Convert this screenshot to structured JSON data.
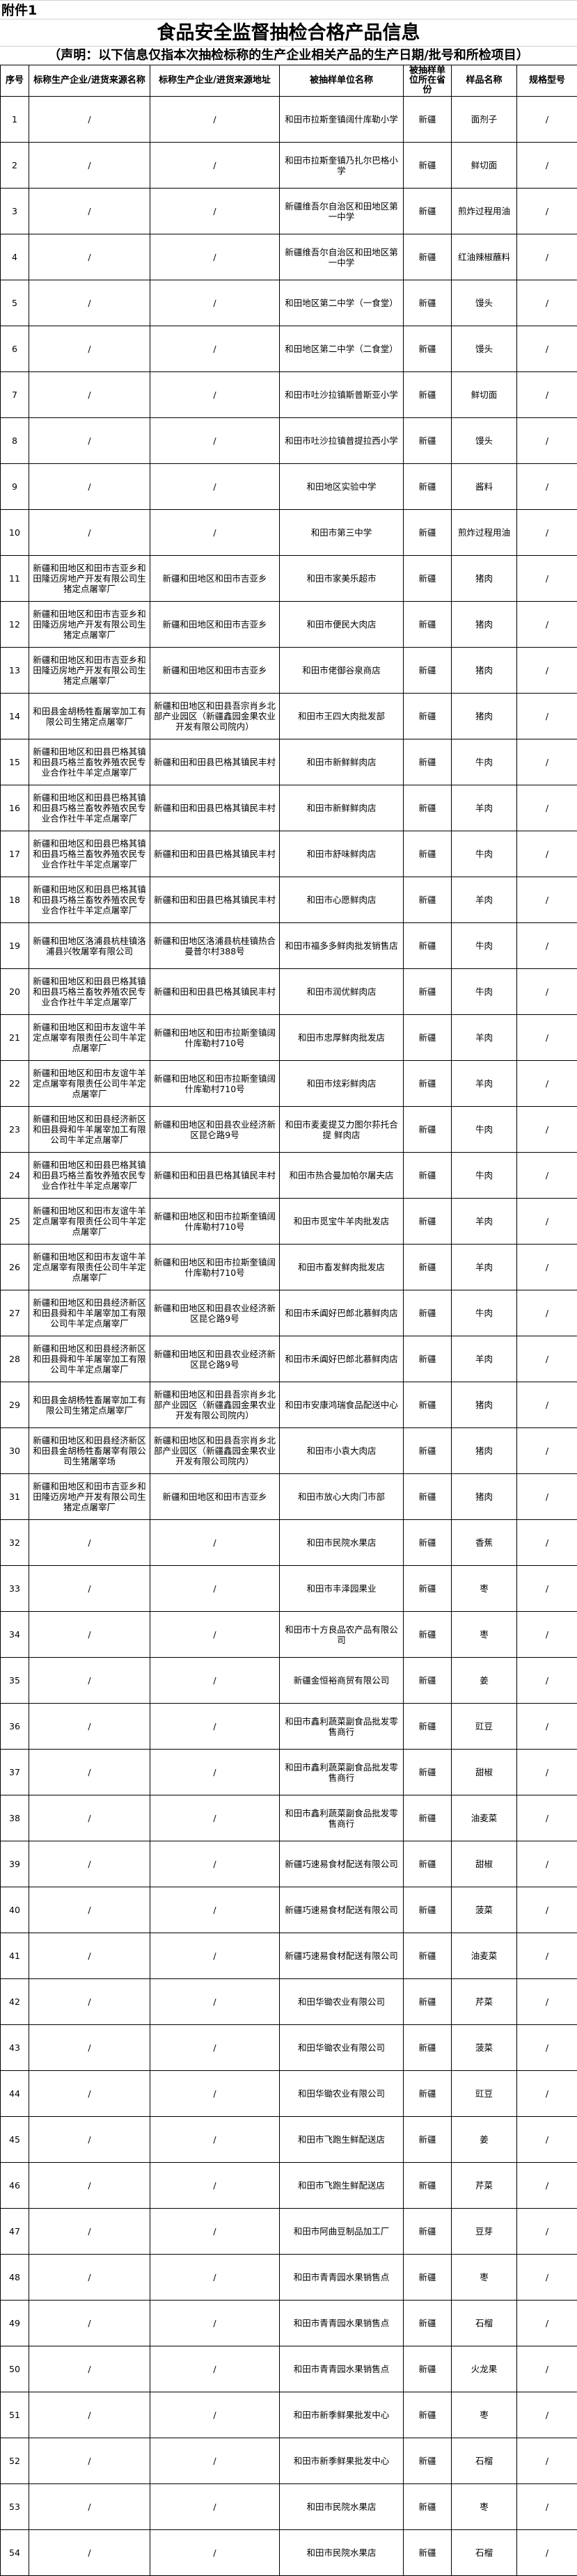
{
  "header": {
    "attachment": "附件1",
    "title": "食品安全监督抽检合格产品信息",
    "subtitle": "（声明：以下信息仅指本次抽检标称的生产企业相关产品的生产日期/批号和所检项目）"
  },
  "table": {
    "columns": [
      "序号",
      "标称生产企业/进货来源名称",
      "标称生产企业/进货来源地址",
      "被抽样单位名称",
      "被抽样单位所在省份",
      "样品名称",
      "规格型号"
    ],
    "rows": [
      [
        "1",
        "/",
        "/",
        "和田市拉斯奎镇阔什库勒小学",
        "新疆",
        "面剂子",
        "/"
      ],
      [
        "2",
        "/",
        "/",
        "和田市拉斯奎镇乃扎尔巴格小学",
        "新疆",
        "鲜切面",
        "/"
      ],
      [
        "3",
        "/",
        "/",
        "新疆维吾尔自治区和田地区第一中学",
        "新疆",
        "煎炸过程用油",
        "/"
      ],
      [
        "4",
        "/",
        "/",
        "新疆维吾尔自治区和田地区第一中学",
        "新疆",
        "红油辣椒蘸料",
        "/"
      ],
      [
        "5",
        "/",
        "/",
        "和田地区第二中学（一食堂）",
        "新疆",
        "馒头",
        "/"
      ],
      [
        "6",
        "/",
        "/",
        "和田地区第二中学（二食堂）",
        "新疆",
        "馒头",
        "/"
      ],
      [
        "7",
        "/",
        "/",
        "和田市吐沙拉镇斯普斯亚小学",
        "新疆",
        "鲜切面",
        "/"
      ],
      [
        "8",
        "/",
        "/",
        "和田市吐沙拉镇普提拉西小学",
        "新疆",
        "馒头",
        "/"
      ],
      [
        "9",
        "/",
        "/",
        "和田地区实验中学",
        "新疆",
        "酱料",
        "/"
      ],
      [
        "10",
        "/",
        "/",
        "和田市第三中学",
        "新疆",
        "煎炸过程用油",
        "/"
      ],
      [
        "11",
        "新疆和田地区和田市吉亚乡和田隆迈房地产开发有限公司生猪定点屠宰厂",
        "新疆和田地区和田市吉亚乡",
        "和田市家美乐超市",
        "新疆",
        "猪肉",
        "/"
      ],
      [
        "12",
        "新疆和田地区和田市吉亚乡和田隆迈房地产开发有限公司生猪定点屠宰厂",
        "新疆和田地区和田市吉亚乡",
        "和田市便民大肉店",
        "新疆",
        "猪肉",
        "/"
      ],
      [
        "13",
        "新疆和田地区和田市吉亚乡和田隆迈房地产开发有限公司生猪定点屠宰厂",
        "新疆和田地区和田市吉亚乡",
        "和田市佬御谷泉商店",
        "新疆",
        "猪肉",
        "/"
      ],
      [
        "14",
        "和田县金胡杨牲畜屠宰加工有限公司生猪定点屠宰厂",
        "新疆和田地区和田县吾宗肖乡北部产业园区（新疆鑫园金果农业开发有限公司院内）",
        "和田市王四大肉批发部",
        "新疆",
        "猪肉",
        "/"
      ],
      [
        "15",
        "新疆和田地区和田县巴格其镇和田县巧格兰畜牧养殖农民专业合作社牛羊定点屠宰厂",
        "新疆和田和田县巴格其镇民丰村",
        "和田市新鲜鲜肉店",
        "新疆",
        "牛肉",
        "/"
      ],
      [
        "16",
        "新疆和田地区和田县巴格其镇和田县巧格兰畜牧养殖农民专业合作社牛羊定点屠宰厂",
        "新疆和田和田县巴格其镇民丰村",
        "和田市新鲜鲜肉店",
        "新疆",
        "羊肉",
        "/"
      ],
      [
        "17",
        "新疆和田地区和田县巴格其镇和田县巧格兰畜牧养殖农民专业合作社牛羊定点屠宰厂",
        "新疆和田和田县巴格其镇民丰村",
        "和田市舒味鲜肉店",
        "新疆",
        "牛肉",
        "/"
      ],
      [
        "18",
        "新疆和田地区和田县巴格其镇和田县巧格兰畜牧养殖农民专业合作社牛羊定点屠宰厂",
        "新疆和田和田县巴格其镇民丰村",
        "和田市心愿鲜肉店",
        "新疆",
        "羊肉",
        "/"
      ],
      [
        "19",
        "新疆和田地区洛浦县杭桂镇洛浦县兴牧屠宰有限公司",
        "新疆和田地区洛浦县杭桂镇热合曼普尔村388号",
        "和田市福多多鲜肉批发销售店",
        "新疆",
        "牛肉",
        "/"
      ],
      [
        "20",
        "新疆和田地区和田县巴格其镇和田县巧格兰畜牧养殖农民专业合作社牛羊定点屠宰厂",
        "新疆和田和田县巴格其镇民丰村",
        "和田市润优鲜肉店",
        "新疆",
        "牛肉",
        "/"
      ],
      [
        "21",
        "新疆和田地区和田市友谊牛羊定点屠宰有限责任公司牛羊定点屠宰厂",
        "新疆和田地区和田市拉斯奎镇阔什库勒村710号",
        "和田市忠厚鲜肉批发店",
        "新疆",
        "羊肉",
        "/"
      ],
      [
        "22",
        "新疆和田地区和田市友谊牛羊定点屠宰有限责任公司牛羊定点屠宰厂",
        "新疆和田地区和田市拉斯奎镇阔什库勒村710号",
        "和田市炫彩鲜肉店",
        "新疆",
        "羊肉",
        "/"
      ],
      [
        "23",
        "新疆和田地区和田县经济新区和田县舜和牛羊屠宰加工有限公司牛羊定点屠宰厂",
        "新疆和田地区和田县农业经济新区昆仑路9号",
        "和田市麦麦提艾力图尔荪托合提 鲜肉店",
        "新疆",
        "牛肉",
        "/"
      ],
      [
        "24",
        "新疆和田地区和田县巴格其镇和田县巧格兰畜牧养殖农民专业合作社牛羊定点屠宰厂",
        "新疆和田和田县巴格其镇民丰村",
        "和田市热合曼加帕尔屠夫店",
        "新疆",
        "牛肉",
        "/"
      ],
      [
        "25",
        "新疆和田地区和田市友谊牛羊定点屠宰有限责任公司牛羊定点屠宰厂",
        "新疆和田地区和田市拉斯奎镇阔什库勒村710号",
        "和田市觅宝牛羊肉批发店",
        "新疆",
        "羊肉",
        "/"
      ],
      [
        "26",
        "新疆和田地区和田市友谊牛羊定点屠宰有限责任公司牛羊定点屠宰厂",
        "新疆和田地区和田市拉斯奎镇阔什库勒村710号",
        "和田市畜发鲜肉批发店",
        "新疆",
        "羊肉",
        "/"
      ],
      [
        "27",
        "新疆和田地区和田县经济新区和田县舜和牛羊屠宰加工有限公司牛羊定点屠宰厂",
        "新疆和田地区和田县农业经济新区昆仑路9号",
        "和田市禾阗好巴郎北慕鲜肉店",
        "新疆",
        "牛肉",
        "/"
      ],
      [
        "28",
        "新疆和田地区和田县经济新区和田县舜和牛羊屠宰加工有限公司牛羊定点屠宰厂",
        "新疆和田地区和田县农业经济新区昆仑路9号",
        "和田市禾阗好巴郎北慕鲜肉店",
        "新疆",
        "羊肉",
        "/"
      ],
      [
        "29",
        "和田县金胡杨牲畜屠宰加工有限公司生猪定点屠宰厂",
        "新疆和田地区和田县吾宗肖乡北部产业园区（新疆鑫园金果农业开发有限公司院内）",
        "和田市安康鸿瑞食品配送中心",
        "新疆",
        "猪肉",
        "/"
      ],
      [
        "30",
        "新疆和田地区和田县经济新区和田县金胡杨牲畜屠宰有限公司生猪屠宰场",
        "新疆和田地区和田县吾宗肖乡北部产业园区（新疆鑫园金果农业开发有限公司院内）",
        "和田市小袁大肉店",
        "新疆",
        "猪肉",
        "/"
      ],
      [
        "31",
        "新疆和田地区和田市吉亚乡和田隆迈房地产开发有限公司生猪定点屠宰厂",
        "新疆和田地区和田市吉亚乡",
        "和田市放心大肉门市部",
        "新疆",
        "猪肉",
        "/"
      ],
      [
        "32",
        "/",
        "/",
        "和田市民院水果店",
        "新疆",
        "香蕉",
        "/"
      ],
      [
        "33",
        "/",
        "/",
        "和田市丰泽园果业",
        "新疆",
        "枣",
        "/"
      ],
      [
        "34",
        "/",
        "/",
        "和田市十方良品农产品有限公司",
        "新疆",
        "枣",
        "/"
      ],
      [
        "35",
        "/",
        "/",
        "新疆金恒裕商贸有限公司",
        "新疆",
        "姜",
        "/"
      ],
      [
        "36",
        "/",
        "/",
        "和田市鑫利蔬菜副食品批发零售商行",
        "新疆",
        "豇豆",
        "/"
      ],
      [
        "37",
        "/",
        "/",
        "和田市鑫利蔬菜副食品批发零售商行",
        "新疆",
        "甜椒",
        "/"
      ],
      [
        "38",
        "/",
        "/",
        "和田市鑫利蔬菜副食品批发零售商行",
        "新疆",
        "油麦菜",
        "/"
      ],
      [
        "39",
        "/",
        "/",
        "新疆巧速易食材配送有限公司",
        "新疆",
        "甜椒",
        "/"
      ],
      [
        "40",
        "/",
        "/",
        "新疆巧速易食材配送有限公司",
        "新疆",
        "菠菜",
        "/"
      ],
      [
        "41",
        "/",
        "/",
        "新疆巧速易食材配送有限公司",
        "新疆",
        "油麦菜",
        "/"
      ],
      [
        "42",
        "/",
        "/",
        "和田华锄农业有限公司",
        "新疆",
        "芹菜",
        "/"
      ],
      [
        "43",
        "/",
        "/",
        "和田华锄农业有限公司",
        "新疆",
        "菠菜",
        "/"
      ],
      [
        "44",
        "/",
        "/",
        "和田华锄农业有限公司",
        "新疆",
        "豇豆",
        "/"
      ],
      [
        "45",
        "/",
        "/",
        "和田市飞跑生鲜配送店",
        "新疆",
        "姜",
        "/"
      ],
      [
        "46",
        "/",
        "/",
        "和田市飞跑生鲜配送店",
        "新疆",
        "芹菜",
        "/"
      ],
      [
        "47",
        "/",
        "/",
        "和田市阿曲豆制品加工厂",
        "新疆",
        "豆芽",
        "/"
      ],
      [
        "48",
        "/",
        "/",
        "和田市青青园水果销售点",
        "新疆",
        "枣",
        "/"
      ],
      [
        "49",
        "/",
        "/",
        "和田市青青园水果销售点",
        "新疆",
        "石榴",
        "/"
      ],
      [
        "50",
        "/",
        "/",
        "和田市青青园水果销售点",
        "新疆",
        "火龙果",
        "/"
      ],
      [
        "51",
        "/",
        "/",
        "和田市新季鲜果批发中心",
        "新疆",
        "枣",
        "/"
      ],
      [
        "52",
        "/",
        "/",
        "和田市新季鲜果批发中心",
        "新疆",
        "石榴",
        "/"
      ],
      [
        "53",
        "/",
        "/",
        "和田市民院水果店",
        "新疆",
        "枣",
        "/"
      ],
      [
        "54",
        "/",
        "/",
        "和田市民院水果店",
        "新疆",
        "石榴",
        "/"
      ]
    ]
  }
}
